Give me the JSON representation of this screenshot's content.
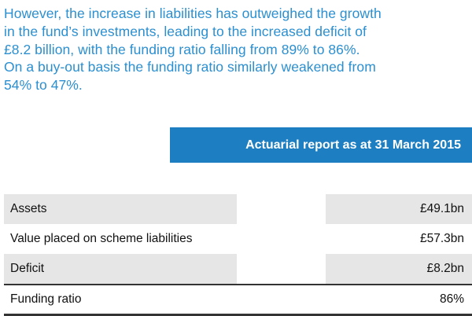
{
  "intro": {
    "lines": [
      "However, the increase in liabilities has outweighed the growth",
      "in the fund’s investments, leading to the increased deficit of",
      "£8.2 billion, with the funding ratio falling from 89% to 86%.",
      "On a buy-out basis the funding ratio similarly weakened from",
      "54% to 47%."
    ]
  },
  "report": {
    "header": "Actuarial report as at 31 March 2015",
    "rows": [
      {
        "label": "Assets",
        "value": "£49.1bn"
      },
      {
        "label": "Value placed on scheme liabilities",
        "value": "£57.3bn"
      },
      {
        "label": "Deficit",
        "value": "£8.2bn"
      },
      {
        "label": "Funding ratio",
        "value": "86%"
      }
    ]
  },
  "colors": {
    "intro_text": "#2b8fd0",
    "header_bg": "#1d7fc1",
    "row_shade": "#e6e6e6"
  }
}
